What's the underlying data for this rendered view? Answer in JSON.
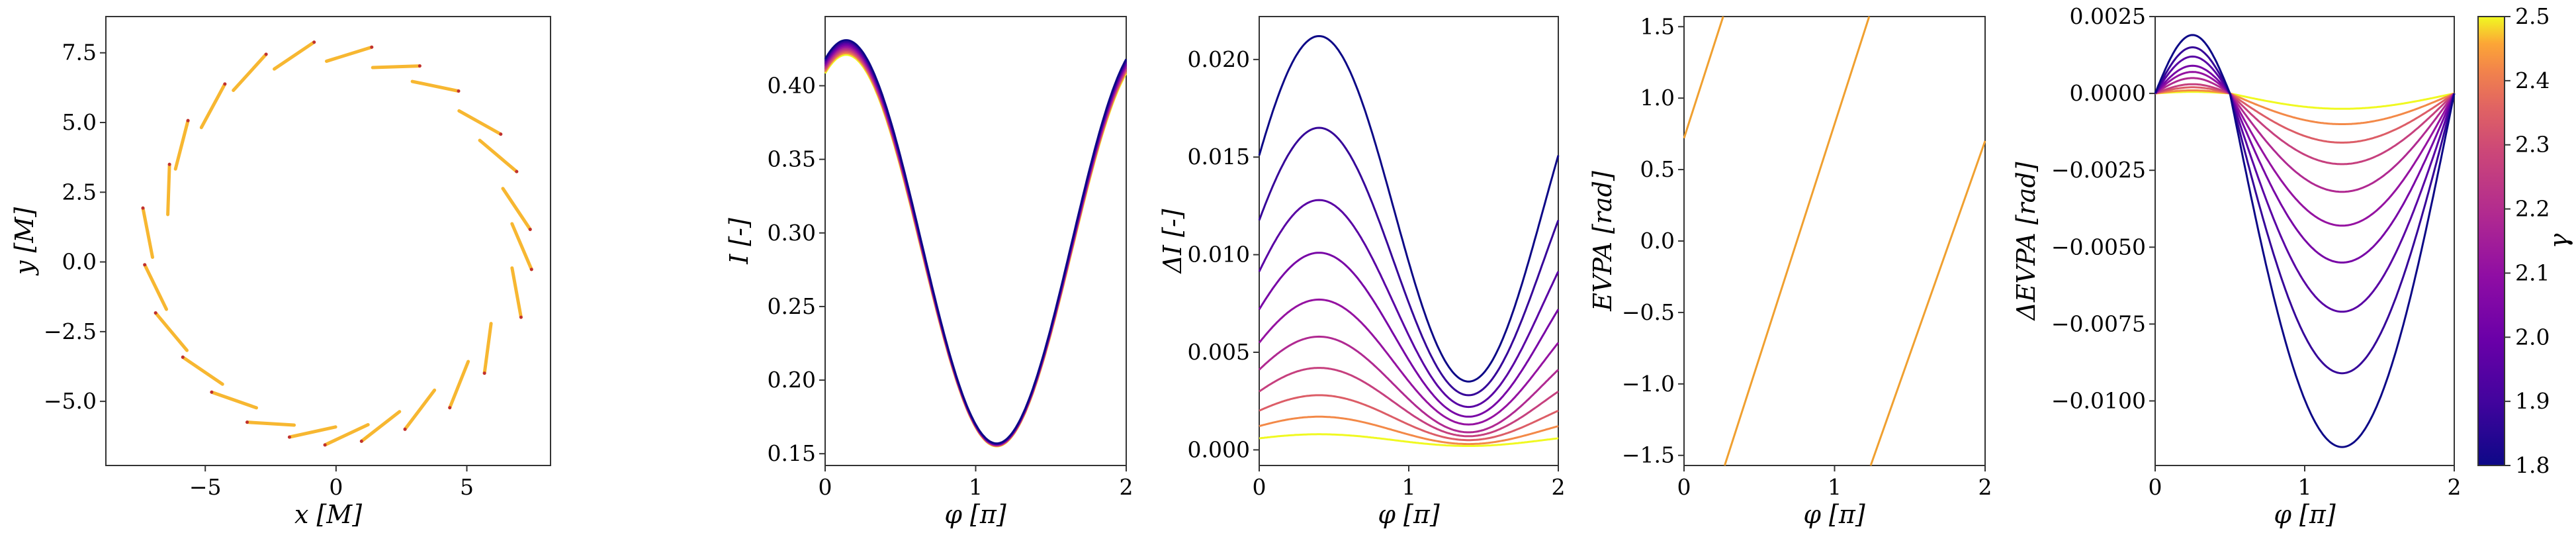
{
  "chart_data": [
    {
      "type": "scatter",
      "xlabel": "x [M]",
      "ylabel": "y [M]",
      "xlim": [
        -8.8,
        8.2
      ],
      "ylim": [
        -7.3,
        8.8
      ],
      "xticks": [
        -5,
        0,
        5
      ],
      "yticks": [
        -5.0,
        -2.5,
        0.0,
        2.5,
        5.0,
        7.5
      ],
      "ytick_labels": [
        "−5.0",
        "−2.5",
        "0.0",
        "2.5",
        "5.0",
        "7.5"
      ],
      "xtick_labels": [
        "−5",
        "0",
        "5"
      ],
      "segment_color": "#f7b731",
      "points": [
        [
          -7.2,
          1.05
        ],
        [
          -6.9,
          -0.9
        ],
        [
          -6.4,
          2.6
        ],
        [
          -6.3,
          -2.5
        ],
        [
          -5.9,
          4.2
        ],
        [
          -5.1,
          -3.9
        ],
        [
          -4.7,
          5.6
        ],
        [
          -3.9,
          -4.95
        ],
        [
          -3.3,
          6.8
        ],
        [
          -2.5,
          -5.8
        ],
        [
          -1.6,
          7.4
        ],
        [
          -0.9,
          -6.1
        ],
        [
          0.5,
          7.45
        ],
        [
          0.4,
          -6.2
        ],
        [
          2.3,
          7.0
        ],
        [
          1.7,
          -5.9
        ],
        [
          3.8,
          6.3
        ],
        [
          3.2,
          -5.3
        ],
        [
          5.5,
          5.0
        ],
        [
          4.7,
          -4.4
        ],
        [
          6.2,
          3.8
        ],
        [
          5.8,
          -3.1
        ],
        [
          6.9,
          1.9
        ],
        [
          6.9,
          -1.1
        ],
        [
          7.1,
          0.55
        ]
      ]
    },
    {
      "type": "line",
      "xlabel": "φ [π]",
      "ylabel": "I [-]",
      "xlim": [
        0,
        2
      ],
      "ylim": [
        0.142,
        0.447
      ],
      "xticks": [
        0,
        1,
        2
      ],
      "yticks": [
        0.15,
        0.2,
        0.25,
        0.3,
        0.35,
        0.4
      ],
      "ytick_labels": [
        "0.15",
        "0.20",
        "0.25",
        "0.30",
        "0.35",
        "0.40"
      ],
      "xtick_labels": [
        "0",
        "1",
        "2"
      ],
      "curves": "I(φ) = 0.4 − 0.013·γ-dependent offset; minima near φ≈1.18 π ≈ 0.156, maxima near φ≈0.12 π ≈ 0.41–0.43"
    },
    {
      "type": "line",
      "xlabel": "φ [π]",
      "ylabel": "ΔI [-]",
      "xlim": [
        0,
        2
      ],
      "ylim": [
        -0.0008,
        0.0222
      ],
      "xticks": [
        0,
        1,
        2
      ],
      "yticks": [
        0.0,
        0.005,
        0.01,
        0.015,
        0.02
      ],
      "ytick_labels": [
        "0.000",
        "0.005",
        "0.010",
        "0.015",
        "0.020"
      ],
      "xtick_labels": [
        "0",
        "1",
        "2"
      ],
      "peaks_at_phi_0_4": [
        0.0212,
        0.0165,
        0.0128,
        0.0101,
        0.0077,
        0.0058,
        0.0042,
        0.0028,
        0.0017,
        0.0008
      ],
      "troughs_at_phi_1_35": [
        0.0035,
        0.0028,
        0.0022,
        0.0017,
        0.0013,
        0.0009,
        0.0007,
        0.0005,
        0.0003,
        0.0002
      ]
    },
    {
      "type": "line",
      "xlabel": "φ [π]",
      "ylabel": "EVPA [rad]",
      "xlim": [
        0,
        2
      ],
      "ylim": [
        -1.5708,
        1.5708
      ],
      "xticks": [
        0,
        1,
        2
      ],
      "yticks": [
        -1.5,
        -1.0,
        -0.5,
        0.0,
        0.5,
        1.0,
        1.5
      ],
      "ytick_labels": [
        "−1.5",
        "−1.0",
        "−0.5",
        "0.0",
        "0.5",
        "1.0",
        "1.5"
      ],
      "xtick_labels": [
        "0",
        "1",
        "2"
      ],
      "line_color": "#f0a030",
      "segments": [
        [
          [
            0,
            0.72
          ],
          [
            0.26,
            1.5708
          ]
        ],
        [
          [
            0.27,
            -1.5708
          ],
          [
            1.23,
            1.5708
          ]
        ],
        [
          [
            1.24,
            -1.5708
          ],
          [
            2.0,
            0.7
          ]
        ]
      ]
    },
    {
      "type": "line",
      "xlabel": "ΔEVPA [rad]",
      "ylabel": "ΔEVPA [rad]",
      "xaxis_label": "φ [π]",
      "xlim": [
        0,
        2
      ],
      "ylim": [
        -0.0121,
        0.0025
      ],
      "xticks": [
        0,
        1,
        2
      ],
      "yticks": [
        0.0025,
        0.0,
        -0.0025,
        -0.005,
        -0.0075,
        -0.01
      ],
      "ytick_labels": [
        "0.0025",
        "0.0000",
        "−0.0025",
        "−0.0050",
        "−0.0075",
        "−0.0100"
      ],
      "xtick_labels": [
        "0",
        "1",
        "2"
      ],
      "peaks_at_phi_0_22": [
        0.0019,
        0.0015,
        0.0012,
        0.0009,
        0.0007,
        0.0005,
        0.0003,
        0.0002,
        0.0001,
        5e-05
      ],
      "troughs_at_phi_1_08": [
        -0.0115,
        -0.0091,
        -0.0071,
        -0.0055,
        -0.0043,
        -0.0032,
        -0.0023,
        -0.0016,
        -0.001,
        -0.0005
      ]
    }
  ],
  "colorbar": {
    "label": "γ",
    "range": [
      1.8,
      2.5
    ],
    "ticks": [
      1.8,
      1.9,
      2.0,
      2.1,
      2.2,
      2.3,
      2.4,
      2.5
    ],
    "tick_labels": [
      "1.8",
      "1.9",
      "2.0",
      "2.1",
      "2.2",
      "2.3",
      "2.4",
      "2.5"
    ],
    "colormap": "plasma"
  },
  "gammas": [
    1.8,
    1.878,
    1.956,
    2.033,
    2.111,
    2.189,
    2.267,
    2.344,
    2.422,
    2.5
  ]
}
